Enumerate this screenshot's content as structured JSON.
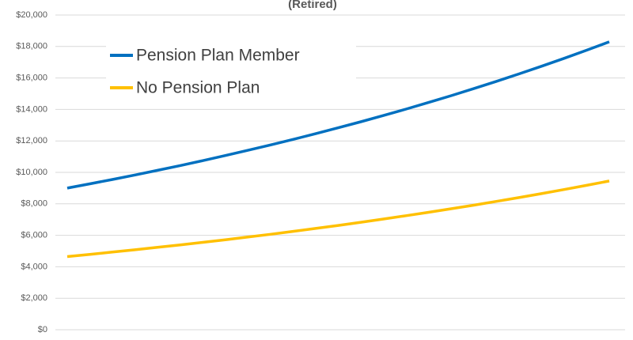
{
  "chart_data": {
    "type": "line",
    "title": "(Retired)",
    "categories": [
      null,
      null,
      null,
      null,
      null,
      null,
      null,
      null,
      null,
      null,
      null,
      null,
      null,
      null,
      null,
      null,
      null,
      null,
      null,
      null,
      null,
      null,
      null,
      null,
      null
    ],
    "series": [
      {
        "name": "Pension Plan Member",
        "color": "#0070c0",
        "values": [
          9000,
          9270,
          9548,
          9835,
          10130,
          10433,
          10746,
          11069,
          11401,
          11743,
          12095,
          12458,
          12832,
          13217,
          13613,
          14022,
          14442,
          14876,
          15322,
          15782,
          16255,
          16743,
          17245,
          17762,
          18295
        ]
      },
      {
        "name": "No Pension Plan",
        "color": "#ffc000",
        "values": [
          4650,
          4790,
          4933,
          5081,
          5234,
          5391,
          5552,
          5719,
          5891,
          6067,
          6249,
          6437,
          6630,
          6829,
          7033,
          7244,
          7462,
          7686,
          7916,
          8154,
          8398,
          8650,
          8910,
          9177,
          9452
        ]
      }
    ],
    "ylim": [
      0,
      20000
    ],
    "yticks": [
      {
        "value": 0,
        "label": "$0"
      },
      {
        "value": 2000,
        "label": "$2,000"
      },
      {
        "value": 4000,
        "label": "$4,000"
      },
      {
        "value": 6000,
        "label": "$6,000"
      },
      {
        "value": 8000,
        "label": "$8,000"
      },
      {
        "value": 10000,
        "label": "$10,000"
      },
      {
        "value": 12000,
        "label": "$12,000"
      },
      {
        "value": 14000,
        "label": "$14,000"
      },
      {
        "value": 16000,
        "label": "$16,000"
      },
      {
        "value": 18000,
        "label": "$18,000"
      },
      {
        "value": 20000,
        "label": "$20,000"
      }
    ],
    "grid": true
  }
}
